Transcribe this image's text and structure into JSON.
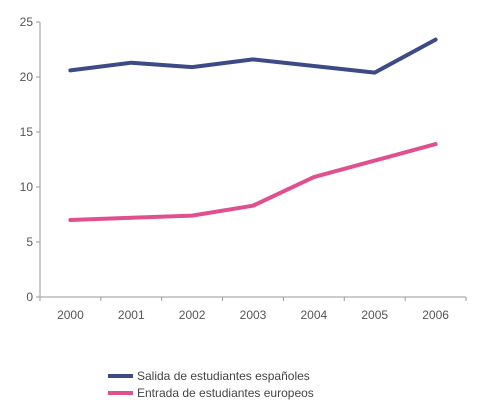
{
  "chart_data": {
    "type": "line",
    "title": "",
    "xlabel": "",
    "ylabel": "",
    "x": [
      "2000",
      "2001",
      "2002",
      "2003",
      "2004",
      "2005",
      "2006"
    ],
    "ylim": [
      0,
      25
    ],
    "y_ticks": [
      "0",
      "5",
      "10",
      "15",
      "20",
      "25"
    ],
    "grid": false,
    "legend_position": "bottom-center",
    "series": [
      {
        "name": "Salida de estudiantes españoles",
        "color": "#3d4a86",
        "values": [
          20.6,
          21.3,
          20.9,
          21.6,
          21.0,
          20.4,
          23.4
        ]
      },
      {
        "name": "Entrada de estudiantes europeos",
        "color": "#e0508f",
        "values": [
          7.0,
          7.2,
          7.4,
          8.3,
          10.9,
          12.4,
          13.9
        ]
      }
    ]
  }
}
